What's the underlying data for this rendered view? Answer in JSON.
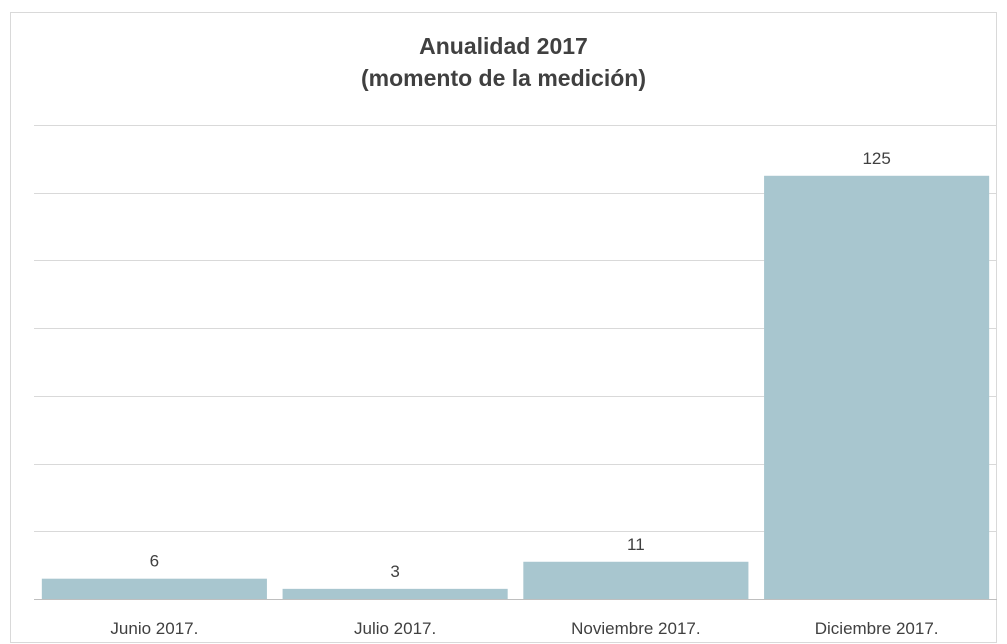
{
  "chart_data": {
    "type": "bar",
    "title": "Anualidad 2017",
    "subtitle": "(momento de la medición)",
    "categories": [
      "Junio 2017.",
      "Julio 2017.",
      "Noviembre 2017.",
      "Diciembre 2017."
    ],
    "values": [
      6,
      3,
      11,
      125
    ],
    "data_labels": [
      "6",
      "3",
      "11",
      "125"
    ],
    "xlabel": "",
    "ylabel": "",
    "ylim": [
      0,
      140
    ],
    "gridline_step": 20,
    "grid": true,
    "legend": "none",
    "bar_color": "#a8c6cf",
    "gridline_color": "#d9d9d9",
    "axis_color": "#bfbfbf",
    "text_color": "#404040"
  }
}
